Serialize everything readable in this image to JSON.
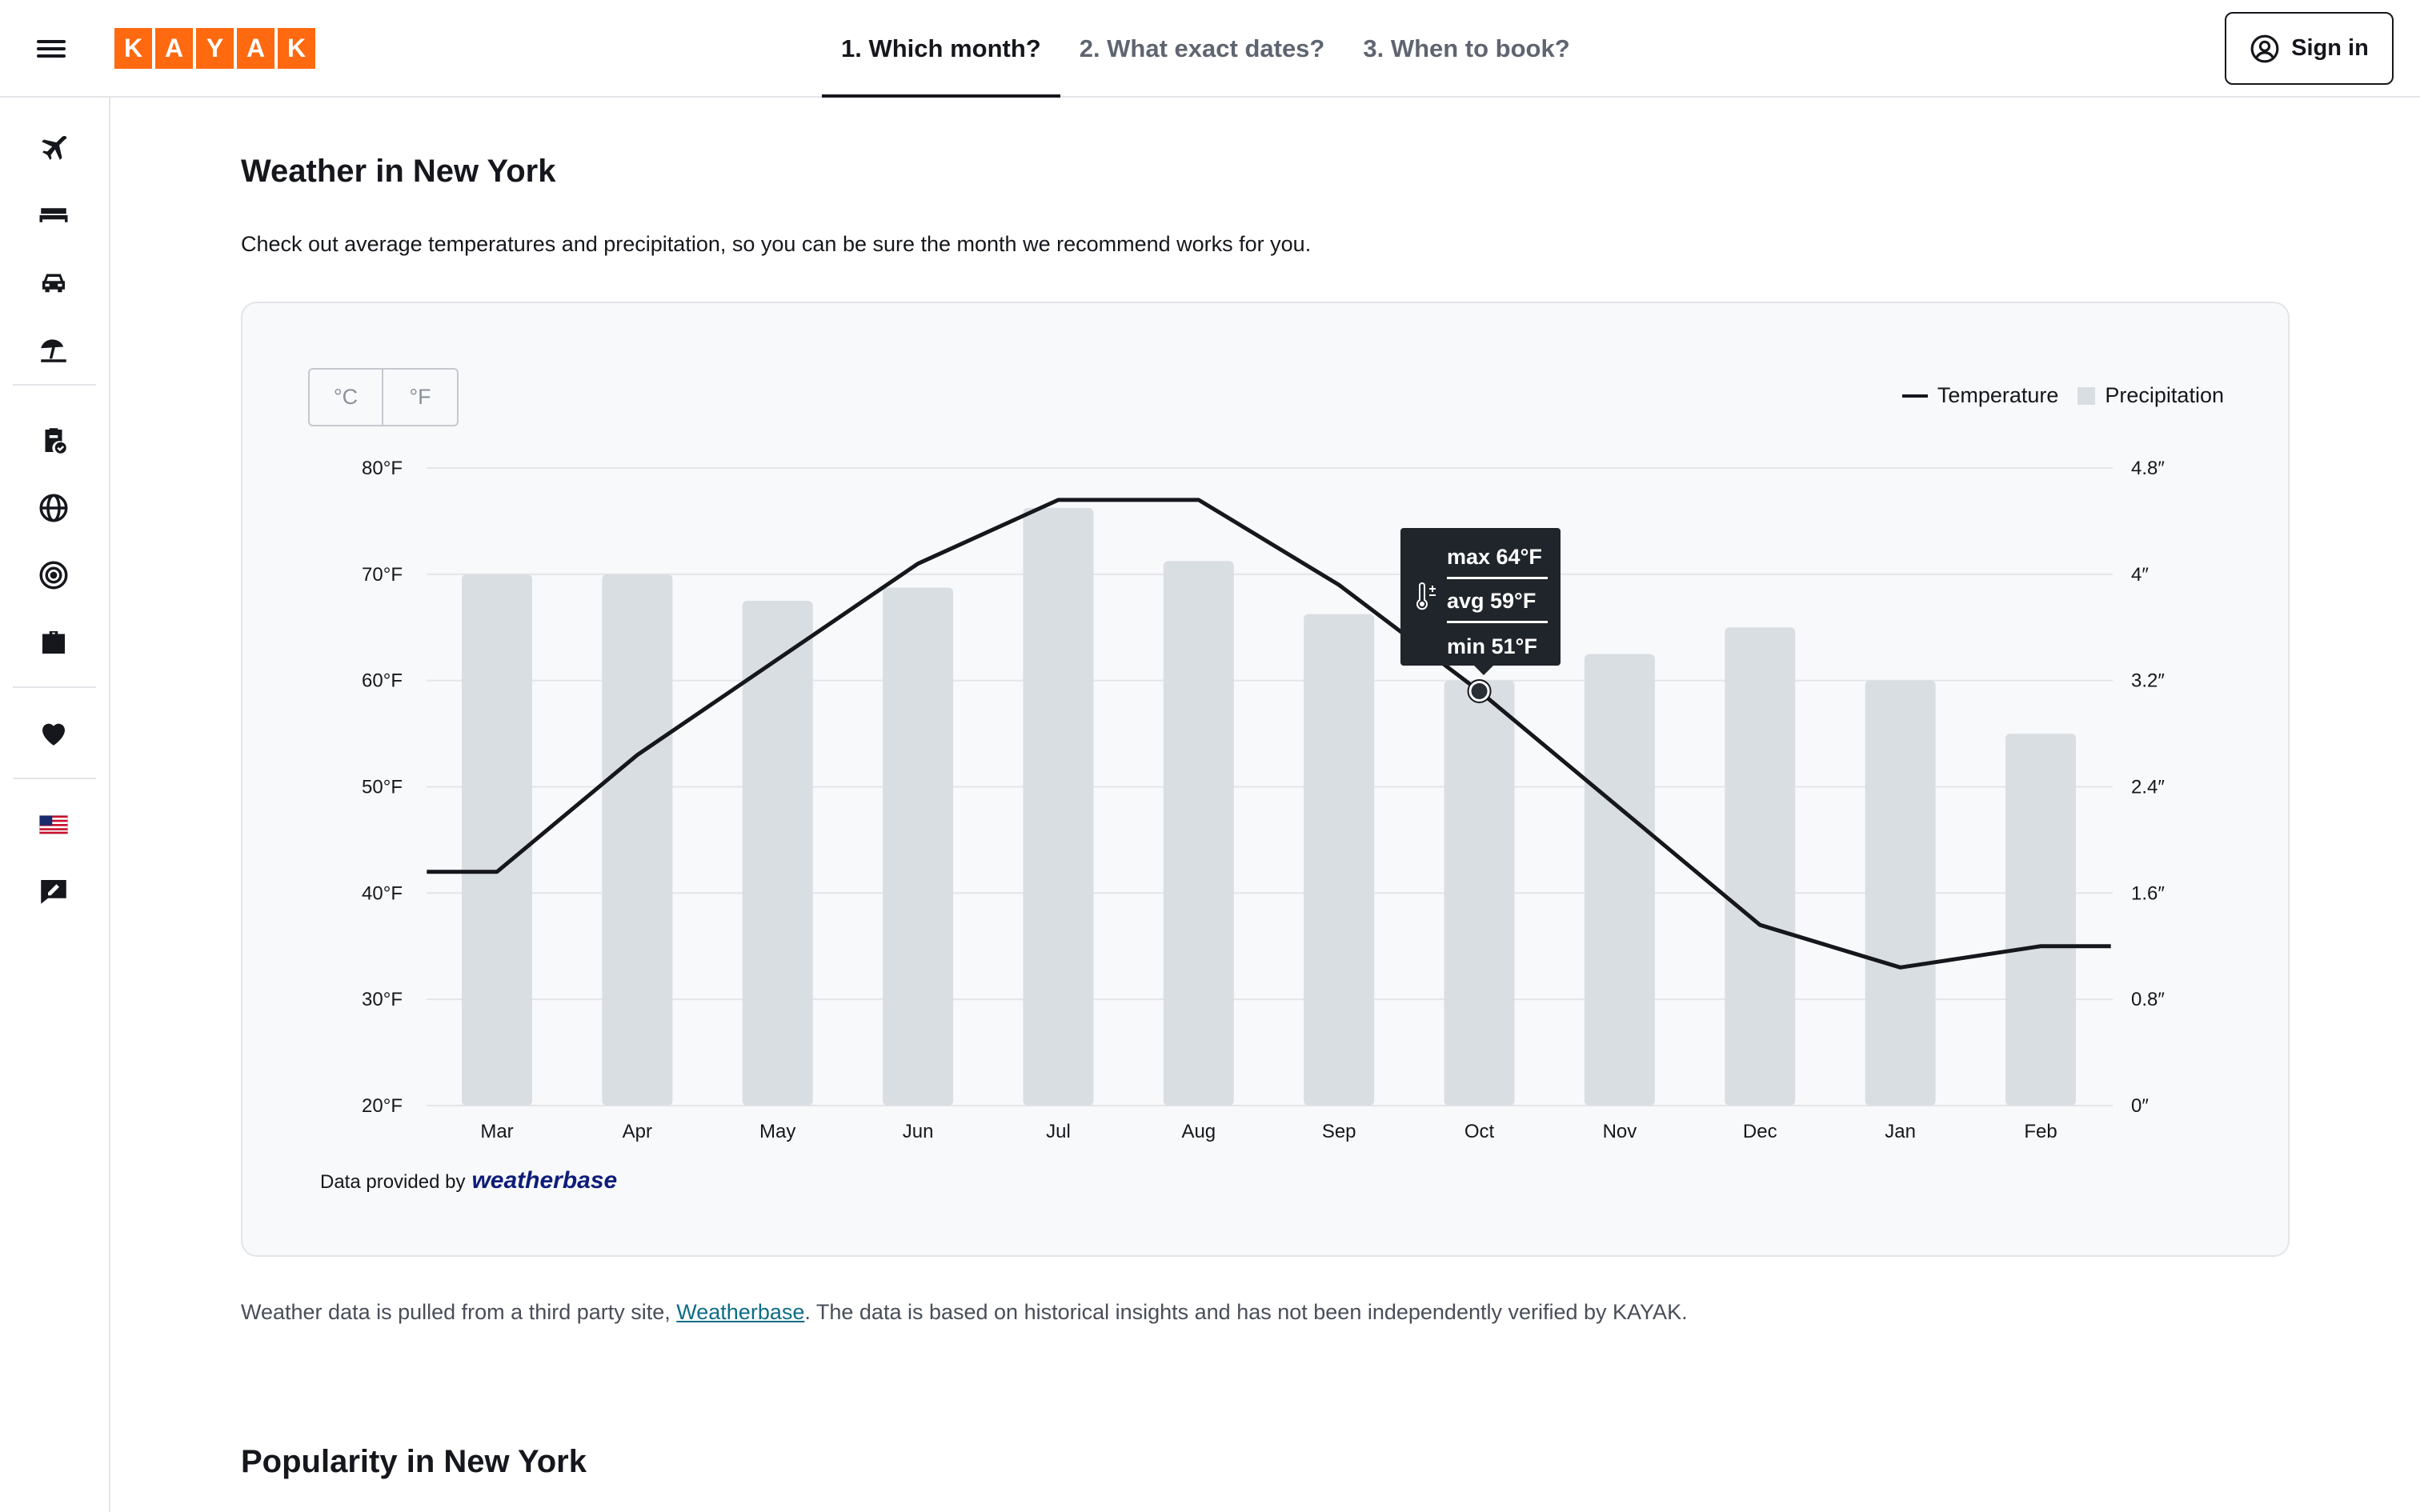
{
  "header": {
    "logo_letters": [
      "K",
      "A",
      "Y",
      "A",
      "K"
    ],
    "tabs": [
      {
        "label": "1. Which month?",
        "active": true
      },
      {
        "label": "2. What exact dates?",
        "active": false
      },
      {
        "label": "3. When to book?",
        "active": false
      }
    ],
    "sign_in_label": "Sign in",
    "brand_color": "#ff690f"
  },
  "sidebar": {
    "items": [
      {
        "icon": "plane-icon"
      },
      {
        "icon": "bed-icon"
      },
      {
        "icon": "car-icon"
      },
      {
        "icon": "beach-umbrella-icon"
      },
      {
        "icon": "clipboard-check-icon"
      },
      {
        "icon": "globe-icon"
      },
      {
        "icon": "target-icon"
      },
      {
        "icon": "briefcase-icon"
      },
      {
        "icon": "heart-icon"
      },
      {
        "icon": "us-flag-icon"
      },
      {
        "icon": "feedback-icon"
      }
    ]
  },
  "weather": {
    "title": "Weather in New York",
    "intro": "Check out average temperatures and precipitation, so you can be sure the month we recommend works for you.",
    "unit_celsius": "°C",
    "unit_fahrenheit": "°F",
    "legend_temperature": "Temperature",
    "legend_precipitation": "Precipitation",
    "tooltip": {
      "max": "max 64°F",
      "avg": "avg 59°F",
      "min": "min 51°F",
      "month": "Oct"
    },
    "credit_prefix": "Data provided by",
    "credit_brand": "weatherbase",
    "disclaimer_prefix": "Weather data is pulled from a third party site, ",
    "disclaimer_link": "Weatherbase",
    "disclaimer_suffix": ". The data is based on historical insights and has not been independently verified by KAYAK."
  },
  "popularity": {
    "title": "Popularity in New York"
  },
  "chart_data": {
    "type": "bar+line",
    "categories": [
      "Mar",
      "Apr",
      "May",
      "Jun",
      "Jul",
      "Aug",
      "Sep",
      "Oct",
      "Nov",
      "Dec",
      "Jan",
      "Feb"
    ],
    "series": [
      {
        "name": "Temperature",
        "axis": "left",
        "unit": "°F",
        "values": [
          42,
          53,
          62,
          71,
          77,
          77,
          69,
          59,
          48,
          37,
          33,
          35
        ]
      },
      {
        "name": "Precipitation",
        "axis": "right",
        "unit": "in",
        "values": [
          4.0,
          4.0,
          3.8,
          3.9,
          4.5,
          4.1,
          3.7,
          3.2,
          3.4,
          3.6,
          3.2,
          2.8
        ]
      }
    ],
    "y_left": {
      "ticks": [
        "20°F",
        "30°F",
        "40°F",
        "50°F",
        "60°F",
        "70°F",
        "80°F"
      ],
      "min": 20,
      "max": 80
    },
    "y_right": {
      "ticks": [
        "0″",
        "0.8″",
        "1.6″",
        "2.4″",
        "3.2″",
        "4″",
        "4.8″"
      ],
      "min": 0,
      "max": 4.8
    },
    "highlight_index": 7,
    "colors": {
      "bar": "#d9dee3",
      "line": "#15171c",
      "grid": "#e3e5e8"
    },
    "grid": true,
    "legend_position": "top-right"
  }
}
